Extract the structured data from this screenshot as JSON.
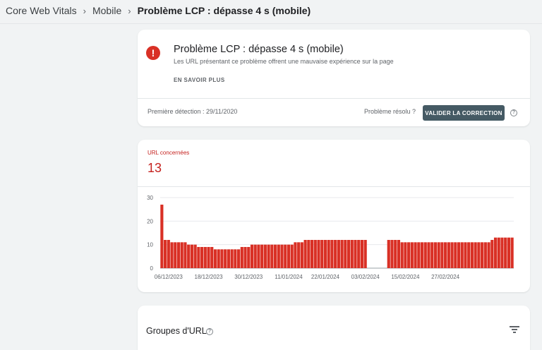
{
  "breadcrumb": {
    "items": [
      "Core Web Vitals",
      "Mobile"
    ],
    "current": "Problème LCP : dépasse 4 s (mobile)",
    "separator": "›"
  },
  "issue": {
    "icon": "error-icon",
    "icon_glyph": "!",
    "title": "Problème LCP : dépasse 4 s (mobile)",
    "description": "Les URL présentant ce problème offrent une mauvaise expérience sur la page",
    "learn_more": "EN SAVOIR PLUS",
    "first_detection": "Première détection : 29/11/2020",
    "resolved_question": "Problème résolu ?",
    "validate_button": "VALIDER LA CORRECTION",
    "help_glyph": "?"
  },
  "metric": {
    "label": "URL concernées",
    "value": "13"
  },
  "chart_data": {
    "type": "bar",
    "color": "#d93025",
    "y_ticks": [
      "30",
      "20",
      "10",
      "0"
    ],
    "ylim": [
      0,
      30
    ],
    "x_tick_labels": [
      "06/12/2023",
      "18/12/2023",
      "30/12/2023",
      "11/01/2024",
      "22/01/2024",
      "03/02/2024",
      "15/02/2024",
      "27/02/2024"
    ],
    "x_tick_indices": [
      2,
      14,
      26,
      38,
      49,
      61,
      73,
      85
    ],
    "values": [
      27,
      12,
      12,
      11,
      11,
      11,
      11,
      11,
      10,
      10,
      10,
      9,
      9,
      9,
      9,
      9,
      8,
      8,
      8,
      8,
      8,
      8,
      8,
      8,
      9,
      9,
      9,
      10,
      10,
      10,
      10,
      10,
      10,
      10,
      10,
      10,
      10,
      10,
      10,
      10,
      11,
      11,
      11,
      12,
      12,
      12,
      12,
      12,
      12,
      12,
      12,
      12,
      12,
      12,
      12,
      12,
      12,
      12,
      12,
      12,
      12,
      12,
      0,
      0,
      0,
      0,
      0,
      0,
      12,
      12,
      12,
      12,
      11,
      11,
      11,
      11,
      11,
      11,
      11,
      11,
      11,
      11,
      11,
      11,
      11,
      11,
      11,
      11,
      11,
      11,
      11,
      11,
      11,
      11,
      11,
      11,
      11,
      11,
      11,
      12,
      13,
      13,
      13,
      13,
      13,
      13
    ]
  },
  "groups": {
    "title": "Groupes d'URL",
    "help_glyph": "?"
  }
}
